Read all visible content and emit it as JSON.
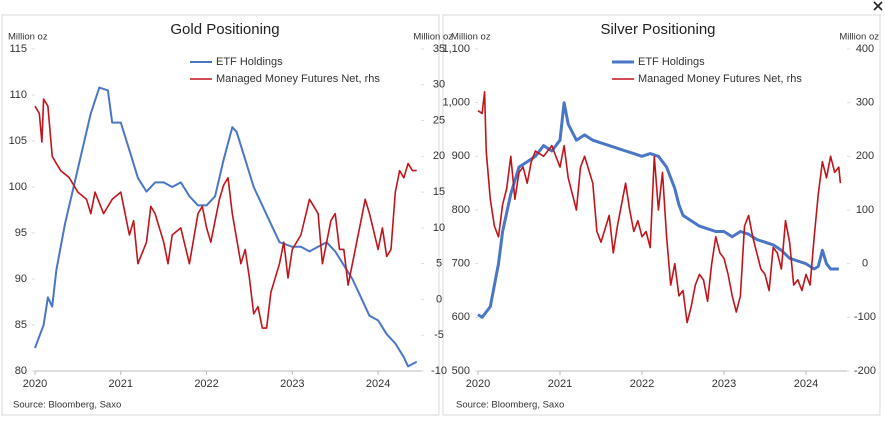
{
  "chart_data": [
    {
      "type": "line",
      "title": "Gold Positioning",
      "y_label": "Million oz",
      "y2_label": "Million oz",
      "source": "Source: Bloomberg, Saxo",
      "xlim": [
        2020,
        2024.5
      ],
      "xticks": [
        2020,
        2021,
        2022,
        2023,
        2024
      ],
      "ylim": [
        80,
        115
      ],
      "yticks": [
        80,
        85,
        90,
        95,
        100,
        105,
        110,
        115
      ],
      "y2lim": [
        -10,
        35
      ],
      "y2ticks": [
        -10,
        -5,
        0,
        5,
        10,
        15,
        20,
        25,
        30,
        35
      ],
      "series": [
        {
          "name": "ETF Holdings",
          "color": "#4a76c6",
          "x": [
            2020.0,
            2020.1,
            2020.15,
            2020.2,
            2020.25,
            2020.35,
            2020.45,
            2020.55,
            2020.65,
            2020.75,
            2020.85,
            2020.9,
            2021.0,
            2021.1,
            2021.2,
            2021.3,
            2021.4,
            2021.5,
            2021.6,
            2021.7,
            2021.8,
            2021.9,
            2022.0,
            2022.1,
            2022.2,
            2022.3,
            2022.35,
            2022.45,
            2022.55,
            2022.65,
            2022.75,
            2022.85,
            2023.0,
            2023.1,
            2023.2,
            2023.3,
            2023.4,
            2023.5,
            2023.6,
            2023.7,
            2023.8,
            2023.9,
            2024.0,
            2024.1,
            2024.2,
            2024.3,
            2024.35,
            2024.45
          ],
          "values": [
            82.5,
            85,
            88,
            87,
            91,
            96,
            100,
            104,
            108,
            110.8,
            110.5,
            107,
            107,
            104,
            101,
            99.5,
            100.5,
            100.5,
            100,
            100.5,
            99,
            98,
            98,
            99,
            103,
            106.5,
            106,
            103,
            100,
            98,
            96,
            94,
            93.5,
            93.5,
            93,
            93.5,
            94,
            93,
            91.5,
            90,
            88,
            86,
            85.5,
            84,
            83,
            81.5,
            80.5,
            81
          ]
        },
        {
          "name": "Managed Money Futures Net, rhs",
          "color": "#c0141a",
          "axis": "y2",
          "x": [
            2020.0,
            2020.05,
            2020.08,
            2020.1,
            2020.15,
            2020.2,
            2020.25,
            2020.3,
            2020.4,
            2020.5,
            2020.6,
            2020.65,
            2020.7,
            2020.8,
            2020.9,
            2021.0,
            2021.1,
            2021.15,
            2021.2,
            2021.3,
            2021.35,
            2021.4,
            2021.5,
            2021.55,
            2021.6,
            2021.7,
            2021.8,
            2021.9,
            2021.95,
            2022.0,
            2022.05,
            2022.1,
            2022.15,
            2022.2,
            2022.25,
            2022.3,
            2022.4,
            2022.45,
            2022.5,
            2022.55,
            2022.6,
            2022.65,
            2022.7,
            2022.75,
            2022.85,
            2022.9,
            2022.95,
            2023.0,
            2023.1,
            2023.2,
            2023.25,
            2023.3,
            2023.35,
            2023.45,
            2023.5,
            2023.55,
            2023.6,
            2023.65,
            2023.7,
            2023.8,
            2023.85,
            2023.9,
            2024.0,
            2024.05,
            2024.1,
            2024.15,
            2024.2,
            2024.25,
            2024.3,
            2024.35,
            2024.4,
            2024.45
          ],
          "values": [
            27,
            26,
            22,
            28,
            27,
            20,
            19,
            18,
            17,
            15,
            14,
            12,
            15,
            12,
            14,
            15,
            9,
            11,
            5,
            8,
            13,
            12,
            8,
            5,
            9,
            10,
            5,
            12,
            13,
            10,
            8,
            11,
            14,
            16,
            17,
            12,
            5,
            7,
            3,
            -2,
            -1,
            -4,
            -4,
            1,
            5,
            8,
            3,
            7,
            9,
            14,
            13,
            12,
            5,
            11,
            12,
            7,
            7,
            2,
            5,
            11,
            14,
            12,
            7,
            10,
            6,
            7,
            15,
            18,
            17,
            19,
            18,
            18
          ]
        }
      ]
    },
    {
      "type": "line",
      "title": "Silver Positioning",
      "y_label": "Million oz",
      "y2_label": "Million oz",
      "source": "Source: Bloomberg, Saxo",
      "xlim": [
        2020,
        2024.5
      ],
      "xticks": [
        2020,
        2021,
        2022,
        2023,
        2024
      ],
      "ylim": [
        500,
        1100
      ],
      "yticks": [
        500,
        600,
        700,
        800,
        900,
        {
          "value": 1000,
          "label": "1,000"
        },
        {
          "value": 1100,
          "label": "1,100"
        }
      ],
      "y2lim": [
        -200,
        400
      ],
      "y2ticks": [
        -200,
        -100,
        0,
        100,
        200,
        300,
        400
      ],
      "series": [
        {
          "name": "ETF Holdings",
          "color": "#4a76c6",
          "x": [
            2020.0,
            2020.05,
            2020.1,
            2020.15,
            2020.2,
            2020.25,
            2020.3,
            2020.4,
            2020.5,
            2020.6,
            2020.7,
            2020.8,
            2020.9,
            2021.0,
            2021.05,
            2021.1,
            2021.2,
            2021.3,
            2021.4,
            2021.5,
            2021.6,
            2021.7,
            2021.8,
            2021.9,
            2022.0,
            2022.1,
            2022.2,
            2022.3,
            2022.4,
            2022.45,
            2022.5,
            2022.6,
            2022.7,
            2022.8,
            2022.9,
            2023.0,
            2023.1,
            2023.2,
            2023.3,
            2023.4,
            2023.5,
            2023.6,
            2023.7,
            2023.8,
            2023.9,
            2024.0,
            2024.1,
            2024.15,
            2024.2,
            2024.25,
            2024.3,
            2024.4
          ],
          "values": [
            605,
            600,
            610,
            620,
            660,
            700,
            760,
            830,
            880,
            890,
            900,
            920,
            910,
            930,
            1000,
            960,
            930,
            940,
            930,
            925,
            920,
            915,
            910,
            905,
            900,
            905,
            900,
            880,
            840,
            810,
            790,
            780,
            770,
            765,
            760,
            760,
            750,
            760,
            755,
            745,
            740,
            735,
            725,
            710,
            705,
            700,
            690,
            695,
            725,
            700,
            690,
            690
          ]
        },
        {
          "name": "Managed Money Futures Net, rhs",
          "color": "#c0141a",
          "axis": "y2",
          "x": [
            2020.0,
            2020.05,
            2020.08,
            2020.1,
            2020.15,
            2020.2,
            2020.25,
            2020.3,
            2020.35,
            2020.4,
            2020.45,
            2020.5,
            2020.55,
            2020.6,
            2020.65,
            2020.7,
            2020.8,
            2020.9,
            2021.0,
            2021.05,
            2021.1,
            2021.15,
            2021.2,
            2021.25,
            2021.3,
            2021.4,
            2021.45,
            2021.5,
            2021.6,
            2021.65,
            2021.7,
            2021.8,
            2021.85,
            2021.9,
            2021.95,
            2022.0,
            2022.05,
            2022.1,
            2022.15,
            2022.2,
            2022.25,
            2022.3,
            2022.35,
            2022.4,
            2022.45,
            2022.5,
            2022.55,
            2022.6,
            2022.65,
            2022.7,
            2022.75,
            2022.8,
            2022.85,
            2022.9,
            2022.95,
            2023.0,
            2023.05,
            2023.1,
            2023.15,
            2023.2,
            2023.25,
            2023.3,
            2023.35,
            2023.4,
            2023.45,
            2023.5,
            2023.55,
            2023.6,
            2023.65,
            2023.7,
            2023.75,
            2023.8,
            2023.85,
            2023.9,
            2023.95,
            2024.0,
            2024.05,
            2024.1,
            2024.15,
            2024.2,
            2024.25,
            2024.3,
            2024.35,
            2024.4,
            2024.42
          ],
          "values": [
            285,
            280,
            320,
            210,
            120,
            70,
            50,
            110,
            140,
            200,
            120,
            170,
            180,
            150,
            190,
            210,
            200,
            220,
            180,
            220,
            160,
            130,
            100,
            180,
            200,
            150,
            60,
            40,
            90,
            20,
            70,
            150,
            100,
            60,
            80,
            50,
            60,
            30,
            200,
            100,
            170,
            50,
            -40,
            0,
            -60,
            -50,
            -110,
            -80,
            -40,
            -20,
            -30,
            -70,
            0,
            50,
            20,
            10,
            -20,
            -60,
            -90,
            -60,
            70,
            90,
            50,
            20,
            -10,
            -20,
            -50,
            30,
            20,
            -10,
            80,
            40,
            -40,
            -30,
            -50,
            -20,
            -40,
            50,
            130,
            190,
            160,
            200,
            170,
            180,
            150
          ]
        }
      ]
    }
  ]
}
